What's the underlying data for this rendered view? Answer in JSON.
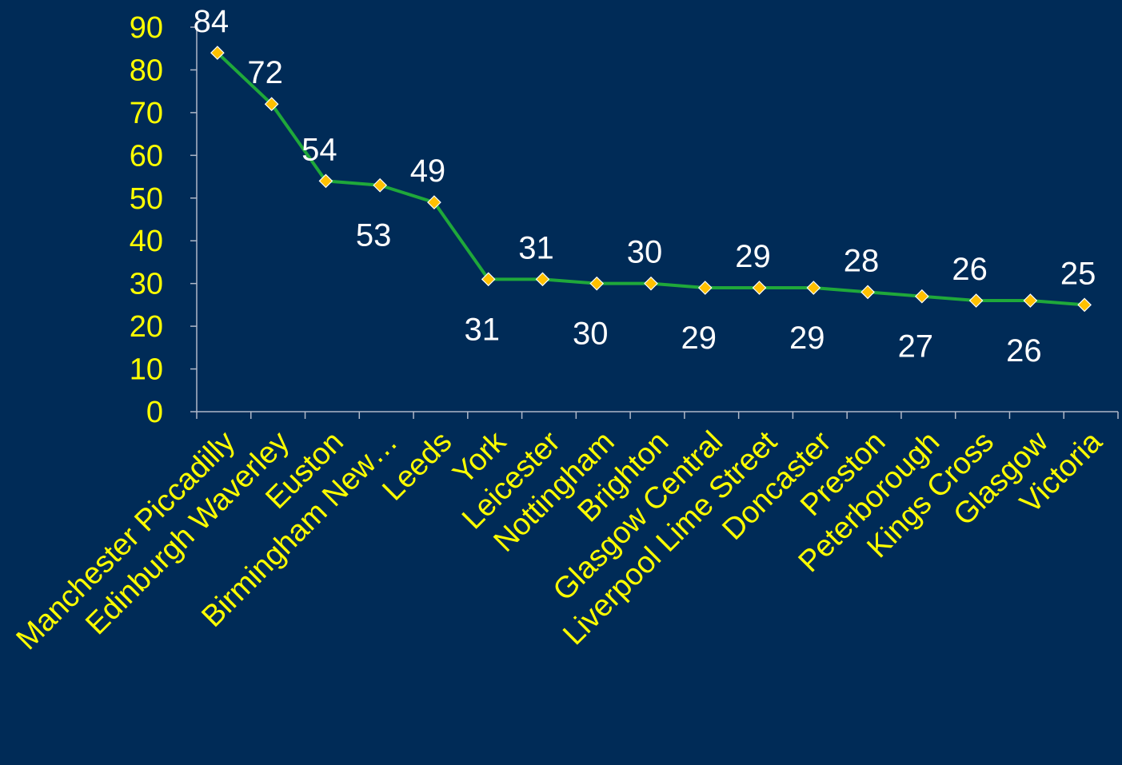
{
  "colors": {
    "background": "#002b57",
    "line": "#1fa83a",
    "marker": "#ffc000",
    "marker_stroke": "#ffffff",
    "tick_text": "#ffff00",
    "data_label": "#ffffff",
    "axis": "#b0b8c8"
  },
  "chart_data": {
    "type": "line",
    "categories": [
      "Manchester Piccadilly",
      "Edinburgh Waverley",
      "Euston",
      "Birmingham New…",
      "Leeds",
      "York",
      "Leicester",
      "Nottingham",
      "Brighton",
      "Glasgow Central",
      "Liverpool Lime Street",
      "Doncaster",
      "Preston",
      "Peterborough",
      "Kings Cross",
      "Glasgow",
      "Victoria"
    ],
    "values": [
      84,
      72,
      54,
      53,
      49,
      31,
      31,
      30,
      30,
      29,
      29,
      29,
      28,
      27,
      26,
      26,
      25
    ],
    "data_labels": [
      "84",
      "72",
      "54",
      "53",
      "49",
      "31",
      "31",
      "30",
      "30",
      "29",
      "29",
      "29",
      "28",
      "27",
      "26",
      "26",
      "25"
    ],
    "label_positions": [
      "above",
      "above",
      "above",
      "below",
      "above",
      "below",
      "above",
      "below",
      "above",
      "below",
      "above",
      "below",
      "above",
      "below",
      "above",
      "below",
      "above"
    ],
    "y_ticks": [
      "0",
      "10",
      "20",
      "30",
      "40",
      "50",
      "60",
      "70",
      "80",
      "90"
    ],
    "ylim": [
      0,
      90
    ],
    "grid": false,
    "legend": "none",
    "marker": "diamond"
  }
}
